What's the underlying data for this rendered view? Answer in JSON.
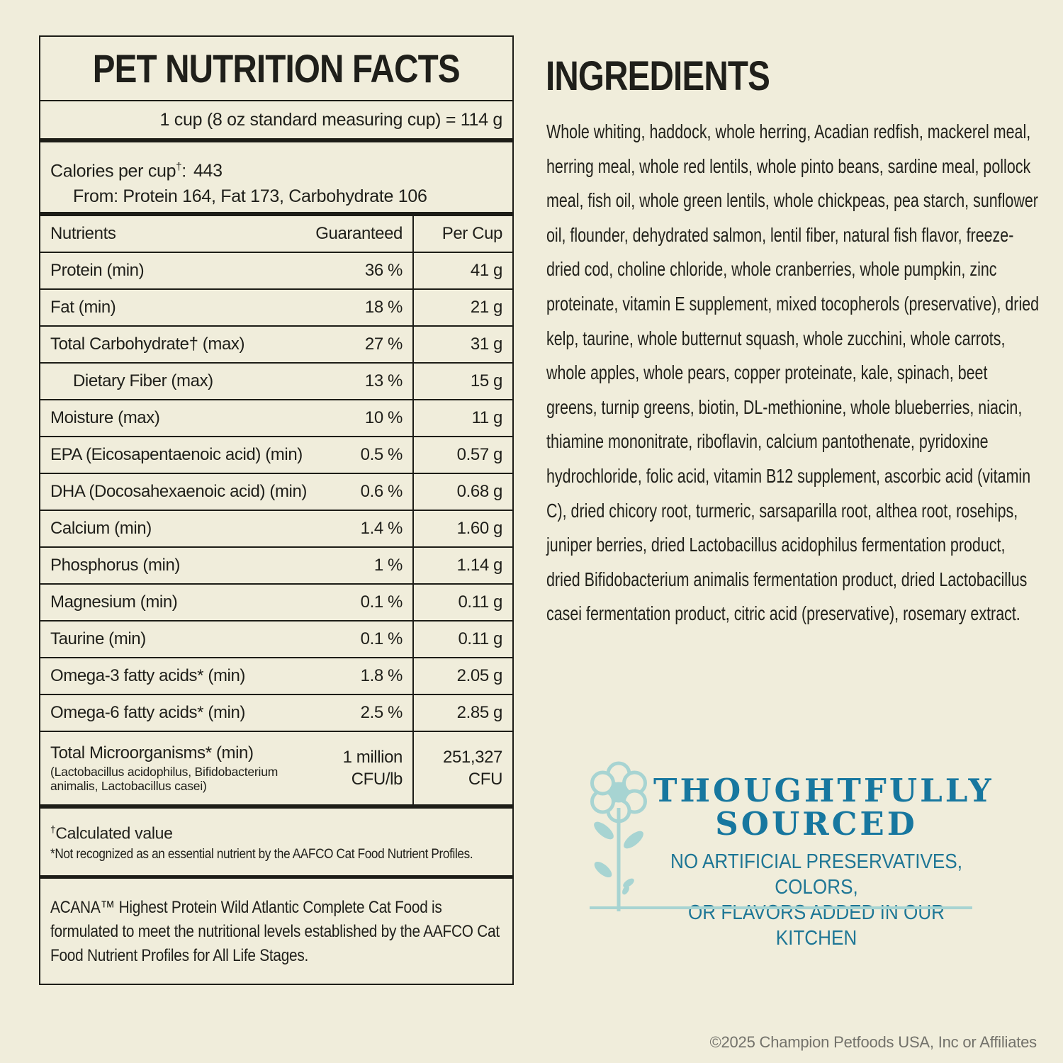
{
  "colors": {
    "background": "#f0eddb",
    "ink": "#1f1f1a",
    "teal": "#17779f",
    "light_blue": "#a7d4d2",
    "copyright_gray": "#73726b"
  },
  "nutrition_panel": {
    "title": "PET NUTRITION FACTS",
    "serving_line": "1 cup (8 oz standard measuring cup) = 114 g",
    "calories": {
      "label": "Calories per cup",
      "dagger": "†",
      "colon": ":",
      "value": "443",
      "from_line": "From: Protein 164, Fat 173, Carbohydrate 106"
    },
    "table": {
      "headers": {
        "nutrient": "Nutrients",
        "guaranteed": "Guaranteed",
        "per_cup": "Per Cup"
      },
      "rows": [
        {
          "name": "Protein (min)",
          "guaranteed": "36 %",
          "per_cup": "41 g"
        },
        {
          "name": "Fat (min)",
          "guaranteed": "18 %",
          "per_cup": "21 g"
        },
        {
          "name": "Total Carbohydrate† (max)",
          "guaranteed": "27 %",
          "per_cup": "31 g"
        },
        {
          "name": "Dietary Fiber (max)",
          "indent": true,
          "guaranteed": "13 %",
          "per_cup": "15 g"
        },
        {
          "name": "Moisture (max)",
          "guaranteed": "10 %",
          "per_cup": "11 g"
        },
        {
          "name": "EPA (Eicosapentaenoic acid) (min)",
          "guaranteed": "0.5 %",
          "per_cup": "0.57 g"
        },
        {
          "name": "DHA (Docosahexaenoic acid) (min)",
          "guaranteed": "0.6 %",
          "per_cup": "0.68 g"
        },
        {
          "name": "Calcium (min)",
          "guaranteed": "1.4 %",
          "per_cup": "1.60 g"
        },
        {
          "name": "Phosphorus (min)",
          "guaranteed": "1 %",
          "per_cup": "1.14 g"
        },
        {
          "name": "Magnesium (min)",
          "guaranteed": "0.1 %",
          "per_cup": "0.11 g"
        },
        {
          "name": "Taurine (min)",
          "guaranteed": "0.1 %",
          "per_cup": "0.11 g"
        },
        {
          "name": "Omega-3 fatty acids* (min)",
          "guaranteed": "1.8 %",
          "per_cup": "2.05 g"
        },
        {
          "name": "Omega-6 fatty acids* (min)",
          "guaranteed": "2.5 %",
          "per_cup": "2.85 g"
        },
        {
          "name": "Total Microorganisms* (min)",
          "note": "(Lactobacillus acidophilus, Bifidobacterium animalis, Lactobacillus casei)",
          "guaranteed": "1 million CFU/lb",
          "per_cup": "251,327 CFU",
          "tall": true
        }
      ]
    },
    "footnotes": {
      "dagger": "†",
      "calculated": "Calculated value",
      "not_recognized": "*Not recognized as an essential nutrient by the AAFCO Cat Food Nutrient Profiles."
    },
    "aafco_statement": "ACANA™ Highest Protein Wild Atlantic Complete Cat Food is formulated to meet the nutritional levels established by the AAFCO Cat Food Nutrient Profiles for All Life Stages."
  },
  "ingredients": {
    "title": "INGREDIENTS",
    "text": "Whole whiting, haddock, whole herring, Acadian redfish, mackerel meal, herring meal, whole red lentils, whole pinto beans, sardine meal, pollock meal, fish oil, whole green lentils, whole chickpeas, pea starch, sunflower oil, flounder, dehydrated salmon, lentil fiber, natural fish flavor, freeze-dried cod, choline chloride, whole cranberries, whole pumpkin, zinc proteinate, vitamin E supplement, mixed tocopherols (preservative), dried kelp, taurine, whole butternut squash, whole zucchini, whole carrots, whole apples, whole pears, copper proteinate, kale, spinach, beet greens, turnip greens, biotin, DL-methionine, whole blueberries, niacin, thiamine mononitrate, riboflavin, calcium pantothenate, pyridoxine hydrochloride, folic acid, vitamin B12 supplement, ascorbic acid (vitamin C), dried chicory root, turmeric, sarsaparilla root, althea root, rosehips, juniper berries, dried Lactobacillus acidophilus fermentation product, dried Bifidobacterium animalis fermentation product, dried Lactobacillus casei fermentation product, citric acid (preservative), rosemary extract."
  },
  "emblem": {
    "icon": "flower-icon",
    "title_line1": "THOUGHTFULLY",
    "title_line2": "SOURCED",
    "subtitle_line1": "NO ARTIFICIAL PRESERVATIVES, COLORS,",
    "subtitle_line2": "OR FLAVORS ADDED IN OUR KITCHEN"
  },
  "footer": {
    "copyright": "©2025 Champion Petfoods USA, Inc or Affiliates"
  }
}
